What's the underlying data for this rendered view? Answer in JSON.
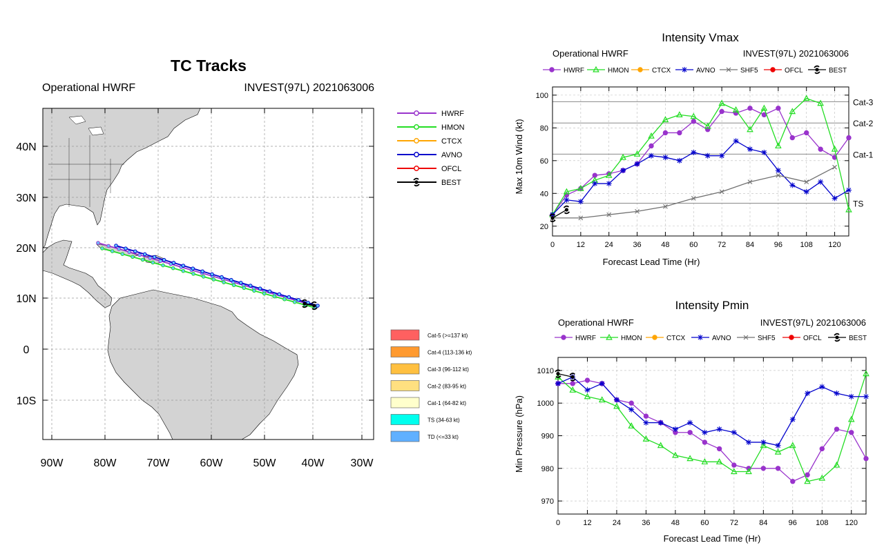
{
  "track_panel": {
    "title": "TC Tracks",
    "subtitle_left": "Operational HWRF",
    "subtitle_right": "INVEST(97L) 2021063006",
    "lon_ticks": [
      "90W",
      "80W",
      "70W",
      "60W",
      "50W",
      "40W",
      "30W"
    ],
    "lat_ticks": [
      "40N",
      "30N",
      "20N",
      "10N",
      "0",
      "10S"
    ],
    "legend": [
      {
        "name": "HWRF",
        "color": "#9933cc"
      },
      {
        "name": "HMON",
        "color": "#22dd22"
      },
      {
        "name": "CTCX",
        "color": "#ffa500"
      },
      {
        "name": "AVNO",
        "color": "#0000cc"
      },
      {
        "name": "OFCL",
        "color": "#ee0000"
      },
      {
        "name": "BEST",
        "color": "#000000"
      }
    ],
    "categories": [
      {
        "label": "Cat-5 (>=137 kt)",
        "color": "#ff6060"
      },
      {
        "label": "Cat-4 (113-136 kt)",
        "color": "#ff9a30"
      },
      {
        "label": "Cat-3 (96-112 kt)",
        "color": "#ffc040"
      },
      {
        "label": "Cat-2 (83-95 kt)",
        "color": "#ffe080"
      },
      {
        "label": "Cat-1 (64-82 kt)",
        "color": "#ffffcc"
      },
      {
        "label": "TS (34-63 kt)",
        "color": "#00ffee"
      },
      {
        "label": "TD (<=33 kt)",
        "color": "#60b0ff"
      }
    ]
  },
  "chart_data": [
    {
      "type": "line",
      "title": "Intensity Vmax",
      "subtitle_left": "Operational HWRF",
      "subtitle_right": "INVEST(97L) 2021063006",
      "xlabel": "Forecast Lead Time (Hr)",
      "ylabel": "Max 10m Wind (kt)",
      "xlim": [
        0,
        126
      ],
      "ylim": [
        14,
        105
      ],
      "xticks": [
        0,
        12,
        24,
        36,
        48,
        60,
        72,
        84,
        96,
        108,
        120
      ],
      "yticks": [
        20,
        40,
        60,
        80,
        100
      ],
      "ref_lines": [
        {
          "label": "Cat-3",
          "value": 96
        },
        {
          "label": "Cat-2",
          "value": 83
        },
        {
          "label": "Cat-1",
          "value": 64
        },
        {
          "label": "TS",
          "value": 34
        }
      ],
      "legend": [
        "HWRF",
        "HMON",
        "CTCX",
        "AVNO",
        "SHF5",
        "OFCL",
        "BEST"
      ],
      "series": [
        {
          "name": "HWRF",
          "color": "#9933cc",
          "marker": "circle",
          "x": [
            0,
            6,
            12,
            18,
            24,
            30,
            36,
            42,
            48,
            54,
            60,
            66,
            72,
            78,
            84,
            90,
            96,
            102,
            108,
            114,
            120,
            126
          ],
          "y": [
            27,
            39,
            43,
            51,
            52,
            54,
            58,
            69,
            77,
            77,
            84,
            79,
            90,
            89,
            92,
            88,
            92,
            74,
            77,
            67,
            62,
            74
          ]
        },
        {
          "name": "HMON",
          "color": "#22dd22",
          "marker": "triangle",
          "x": [
            0,
            6,
            12,
            18,
            24,
            30,
            36,
            42,
            48,
            54,
            60,
            66,
            72,
            78,
            84,
            90,
            96,
            102,
            108,
            114,
            120,
            126
          ],
          "y": [
            27,
            41,
            43,
            48,
            51,
            62,
            64,
            75,
            85,
            88,
            87,
            81,
            95,
            91,
            79,
            92,
            69,
            90,
            98,
            95,
            67,
            30
          ]
        },
        {
          "name": "AVNO",
          "color": "#0000cc",
          "marker": "star",
          "x": [
            0,
            6,
            12,
            18,
            24,
            30,
            36,
            42,
            48,
            54,
            60,
            66,
            72,
            78,
            84,
            90,
            96,
            102,
            108,
            114,
            120,
            126
          ],
          "y": [
            27,
            36,
            35,
            46,
            46,
            54,
            58,
            63,
            62,
            60,
            65,
            63,
            63,
            72,
            67,
            65,
            54,
            45,
            41,
            47,
            37,
            42
          ]
        },
        {
          "name": "SHF5",
          "color": "#707070",
          "marker": "x",
          "x": [
            0,
            12,
            24,
            36,
            48,
            60,
            72,
            84,
            96,
            108,
            120
          ],
          "y": [
            25,
            25,
            27,
            29,
            32,
            37,
            41,
            47,
            51,
            47,
            56
          ]
        },
        {
          "name": "BEST",
          "color": "#000000",
          "marker": "hurricane",
          "x": [
            0,
            6
          ],
          "y": [
            25,
            30
          ]
        }
      ]
    },
    {
      "type": "line",
      "title": "Intensity Pmin",
      "subtitle_left": "Operational HWRF",
      "subtitle_right": "INVEST(97L) 2021063006",
      "xlabel": "Forecast Lead Time (Hr)",
      "ylabel": "Min Pressure (hPa)",
      "xlim": [
        0,
        126
      ],
      "ylim": [
        966,
        1014
      ],
      "xticks": [
        0,
        12,
        24,
        36,
        48,
        60,
        72,
        84,
        96,
        108,
        120
      ],
      "yticks": [
        970,
        980,
        990,
        1000,
        1010
      ],
      "legend": [
        "HWRF",
        "HMON",
        "CTCX",
        "AVNO",
        "SHF5",
        "OFCL",
        "BEST"
      ],
      "series": [
        {
          "name": "HWRF",
          "color": "#9933cc",
          "marker": "circle",
          "x": [
            0,
            6,
            12,
            18,
            24,
            30,
            36,
            42,
            48,
            54,
            60,
            66,
            72,
            78,
            84,
            90,
            96,
            102,
            108,
            114,
            120,
            126
          ],
          "y": [
            1006,
            1006,
            1007,
            1006,
            1001,
            1000,
            996,
            994,
            991,
            991,
            988,
            986,
            981,
            980,
            980,
            980,
            976,
            978,
            986,
            992,
            991,
            983
          ]
        },
        {
          "name": "HMON",
          "color": "#22dd22",
          "marker": "triangle",
          "x": [
            0,
            6,
            12,
            18,
            24,
            30,
            36,
            42,
            48,
            54,
            60,
            66,
            72,
            78,
            84,
            90,
            96,
            102,
            108,
            114,
            120,
            126
          ],
          "y": [
            1008,
            1004,
            1002,
            1001,
            999,
            993,
            989,
            987,
            984,
            983,
            982,
            982,
            979,
            979,
            987,
            985,
            987,
            976,
            977,
            981,
            995,
            1009
          ]
        },
        {
          "name": "AVNO",
          "color": "#0000cc",
          "marker": "star",
          "x": [
            0,
            6,
            12,
            18,
            24,
            30,
            36,
            42,
            48,
            54,
            60,
            66,
            72,
            78,
            84,
            90,
            96,
            102,
            108,
            114,
            120,
            126
          ],
          "y": [
            1006,
            1008,
            1004,
            1006,
            1001,
            998,
            994,
            994,
            992,
            994,
            991,
            992,
            991,
            988,
            988,
            987,
            995,
            1003,
            1005,
            1003,
            1002,
            1002
          ]
        },
        {
          "name": "BEST",
          "color": "#000000",
          "marker": "hurricane",
          "x": [
            0,
            6
          ],
          "y": [
            1009,
            1008
          ]
        }
      ]
    }
  ]
}
